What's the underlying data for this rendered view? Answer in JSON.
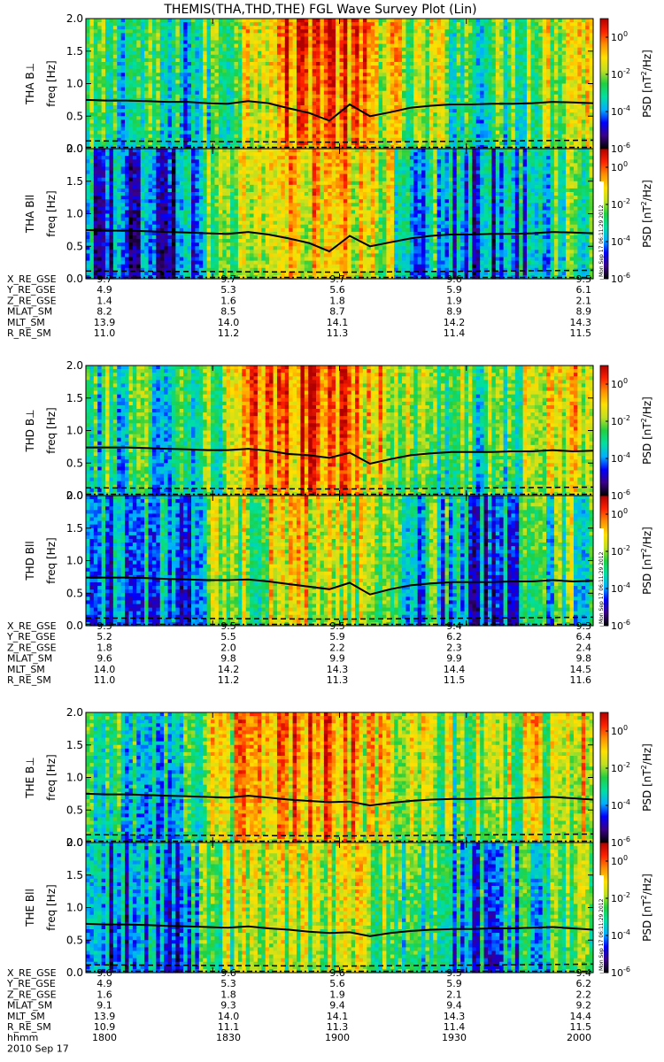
{
  "chart_data": {
    "type": "heatmap",
    "title": "THEMIS(THA,THD,THE) FGL Wave Survey Plot (Lin)",
    "colorbar": {
      "label": "PSD [nT",
      "label_sup": "2",
      "label_rest": "/Hz]",
      "scale": "log",
      "range": [
        1e-06,
        10
      ],
      "ticks": [
        {
          "value": 1,
          "base": "10",
          "exp": "0"
        },
        {
          "value": 0.01,
          "base": "10",
          "exp": "-2"
        },
        {
          "value": 0.0001,
          "base": "10",
          "exp": "-4"
        },
        {
          "value": 1e-06,
          "base": "10",
          "exp": "-6"
        }
      ],
      "colors": [
        "#000000",
        "#3a008a",
        "#0000ff",
        "#00b0ff",
        "#00e0a0",
        "#20d040",
        "#c0e020",
        "#ffe000",
        "#ff9000",
        "#ff2000",
        "#b00000"
      ]
    },
    "y_axis": {
      "label": "freq [Hz]",
      "range": [
        0,
        2.0
      ],
      "ticks": [
        "0.0",
        "0.5",
        "1.0",
        "1.5",
        "2.0"
      ]
    },
    "x_axis": {
      "label": "hhmm",
      "date": "2010 Sep 17",
      "ticks": [
        "1800",
        "1830",
        "1900",
        "1930",
        "2000"
      ]
    },
    "stamp": "Mon Sep 17 06:11:29 2012",
    "probes": [
      {
        "probe": "THA",
        "panels": [
          {
            "label_prefix": "THA B",
            "label_symbol": "⊥",
            "component": "perp",
            "curve_y": [
              0.75,
              0.74,
              0.74,
              0.73,
              0.72,
              0.72,
              0.7,
              0.69,
              0.73,
              0.7,
              0.62,
              0.55,
              0.43,
              0.68,
              0.5,
              0.56,
              0.63,
              0.66,
              0.68,
              0.68,
              0.69,
              0.69,
              0.7,
              0.72,
              0.71,
              0.7
            ],
            "intensity": [
              0.45,
              0.5,
              0.45,
              0.5,
              0.4,
              0.4,
              0.5,
              0.55,
              0.75,
              0.8,
              0.85,
              0.9,
              0.9,
              0.82,
              0.75,
              0.7,
              0.55,
              0.62,
              0.55,
              0.5,
              0.5,
              0.55,
              0.62,
              0.65,
              0.75,
              0.7
            ]
          },
          {
            "label_prefix": "THA B",
            "label_symbol": "ll",
            "component": "para",
            "curve_y": [
              0.75,
              0.74,
              0.74,
              0.73,
              0.72,
              0.71,
              0.7,
              0.69,
              0.72,
              0.68,
              0.62,
              0.55,
              0.42,
              0.66,
              0.5,
              0.56,
              0.62,
              0.66,
              0.68,
              0.68,
              0.69,
              0.69,
              0.7,
              0.72,
              0.71,
              0.7
            ],
            "intensity": [
              0.3,
              0.3,
              0.25,
              0.3,
              0.25,
              0.3,
              0.55,
              0.6,
              0.65,
              0.7,
              0.72,
              0.75,
              0.72,
              0.7,
              0.65,
              0.6,
              0.4,
              0.45,
              0.35,
              0.3,
              0.3,
              0.35,
              0.45,
              0.5,
              0.55,
              0.5
            ]
          }
        ],
        "ephemeris": [
          {
            "label": "X_RE_GSE",
            "values": [
              "9.7",
              "9.7",
              "9.7",
              "9.6",
              "9.5"
            ]
          },
          {
            "label": "Y_RE_GSE",
            "values": [
              "4.9",
              "5.3",
              "5.6",
              "5.9",
              "6.1"
            ]
          },
          {
            "label": "Z_RE_GSE",
            "values": [
              "1.4",
              "1.6",
              "1.8",
              "1.9",
              "2.1"
            ]
          },
          {
            "label": "MLAT_SM",
            "values": [
              "8.2",
              "8.5",
              "8.7",
              "8.9",
              "8.9"
            ]
          },
          {
            "label": "MLT_SM",
            "values": [
              "13.9",
              "14.0",
              "14.1",
              "14.2",
              "14.3"
            ]
          },
          {
            "label": "R_RE_SM",
            "values": [
              "11.0",
              "11.2",
              "11.3",
              "11.4",
              "11.5"
            ]
          }
        ]
      },
      {
        "probe": "THD",
        "panels": [
          {
            "label_prefix": "THD B",
            "label_symbol": "⊥",
            "component": "perp",
            "curve_y": [
              0.74,
              0.74,
              0.74,
              0.73,
              0.72,
              0.71,
              0.7,
              0.7,
              0.72,
              0.69,
              0.64,
              0.62,
              0.58,
              0.66,
              0.49,
              0.56,
              0.62,
              0.65,
              0.67,
              0.67,
              0.67,
              0.68,
              0.68,
              0.7,
              0.68,
              0.69
            ],
            "intensity": [
              0.45,
              0.5,
              0.45,
              0.5,
              0.45,
              0.5,
              0.55,
              0.6,
              0.78,
              0.82,
              0.85,
              0.9,
              0.88,
              0.82,
              0.75,
              0.7,
              0.55,
              0.6,
              0.5,
              0.5,
              0.5,
              0.55,
              0.62,
              0.65,
              0.72,
              0.68
            ]
          },
          {
            "label_prefix": "THD B",
            "label_symbol": "ll",
            "component": "para",
            "curve_y": [
              0.74,
              0.74,
              0.74,
              0.73,
              0.72,
              0.71,
              0.7,
              0.7,
              0.71,
              0.68,
              0.64,
              0.6,
              0.56,
              0.66,
              0.48,
              0.56,
              0.62,
              0.65,
              0.67,
              0.67,
              0.67,
              0.68,
              0.68,
              0.7,
              0.68,
              0.69
            ],
            "intensity": [
              0.3,
              0.35,
              0.3,
              0.35,
              0.3,
              0.35,
              0.55,
              0.6,
              0.62,
              0.65,
              0.7,
              0.72,
              0.7,
              0.65,
              0.62,
              0.6,
              0.4,
              0.45,
              0.35,
              0.3,
              0.3,
              0.35,
              0.45,
              0.5,
              0.55,
              0.5
            ]
          }
        ],
        "ephemeris": [
          {
            "label": "X_RE_GSE",
            "values": [
              "9.5",
              "9.5",
              "9.5",
              "9.4",
              "9.3"
            ]
          },
          {
            "label": "Y_RE_GSE",
            "values": [
              "5.2",
              "5.5",
              "5.9",
              "6.2",
              "6.4"
            ]
          },
          {
            "label": "Z_RE_GSE",
            "values": [
              "1.8",
              "2.0",
              "2.2",
              "2.3",
              "2.4"
            ]
          },
          {
            "label": "MLAT_SM",
            "values": [
              "9.6",
              "9.8",
              "9.9",
              "9.9",
              "9.8"
            ]
          },
          {
            "label": "MLT_SM",
            "values": [
              "14.0",
              "14.2",
              "14.3",
              "14.4",
              "14.5"
            ]
          },
          {
            "label": "R_RE_SM",
            "values": [
              "11.0",
              "11.2",
              "11.3",
              "11.5",
              "11.6"
            ]
          }
        ]
      },
      {
        "probe": "THE",
        "panels": [
          {
            "label_prefix": "THE B",
            "label_symbol": "⊥",
            "component": "perp",
            "curve_y": [
              0.75,
              0.74,
              0.74,
              0.73,
              0.72,
              0.71,
              0.7,
              0.69,
              0.72,
              0.69,
              0.66,
              0.64,
              0.62,
              0.63,
              0.57,
              0.61,
              0.64,
              0.66,
              0.67,
              0.67,
              0.68,
              0.68,
              0.69,
              0.7,
              0.68,
              0.66
            ],
            "intensity": [
              0.5,
              0.5,
              0.45,
              0.45,
              0.45,
              0.5,
              0.6,
              0.7,
              0.78,
              0.8,
              0.82,
              0.88,
              0.85,
              0.8,
              0.72,
              0.68,
              0.6,
              0.6,
              0.55,
              0.55,
              0.6,
              0.62,
              0.65,
              0.68,
              0.72,
              0.7
            ]
          },
          {
            "label_prefix": "THE B",
            "label_symbol": "ll",
            "component": "para",
            "curve_y": [
              0.75,
              0.74,
              0.74,
              0.73,
              0.72,
              0.71,
              0.7,
              0.69,
              0.71,
              0.68,
              0.66,
              0.63,
              0.61,
              0.62,
              0.56,
              0.61,
              0.64,
              0.66,
              0.67,
              0.67,
              0.68,
              0.68,
              0.69,
              0.7,
              0.68,
              0.66
            ],
            "intensity": [
              0.3,
              0.32,
              0.3,
              0.35,
              0.3,
              0.35,
              0.55,
              0.6,
              0.62,
              0.65,
              0.68,
              0.7,
              0.7,
              0.65,
              0.62,
              0.6,
              0.42,
              0.45,
              0.38,
              0.35,
              0.35,
              0.4,
              0.48,
              0.5,
              0.55,
              0.5
            ]
          }
        ],
        "ephemeris": [
          {
            "label": "X_RE_GSE",
            "values": [
              "9.6",
              "9.6",
              "9.6",
              "9.5",
              "9.4"
            ]
          },
          {
            "label": "Y_RE_GSE",
            "values": [
              "4.9",
              "5.3",
              "5.6",
              "5.9",
              "6.2"
            ]
          },
          {
            "label": "Z_RE_GSE",
            "values": [
              "1.6",
              "1.8",
              "1.9",
              "2.1",
              "2.2"
            ]
          },
          {
            "label": "MLAT_SM",
            "values": [
              "9.1",
              "9.3",
              "9.4",
              "9.4",
              "9.2"
            ]
          },
          {
            "label": "MLT_SM",
            "values": [
              "13.9",
              "14.0",
              "14.1",
              "14.3",
              "14.4"
            ]
          },
          {
            "label": "R_RE_SM",
            "values": [
              "10.9",
              "11.1",
              "11.3",
              "11.4",
              "11.5"
            ]
          }
        ]
      }
    ]
  }
}
